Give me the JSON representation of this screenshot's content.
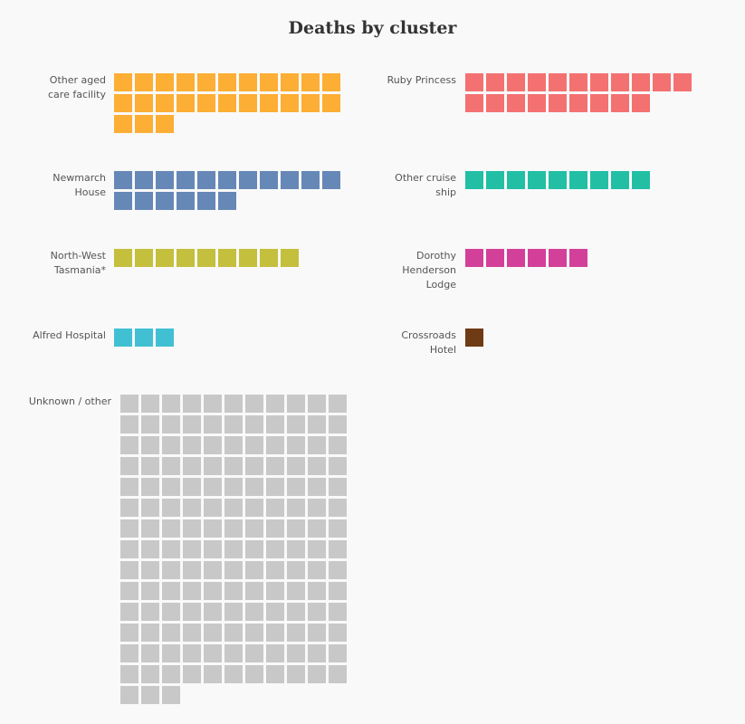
{
  "chart_data": {
    "type": "waffle",
    "title": "Deaths by cluster",
    "unit": "1 square = 1 death",
    "clusters": [
      {
        "name": "Other aged\ncare facility",
        "value": 25,
        "color": "#fdae35"
      },
      {
        "name": "Ruby Princess",
        "value": 20,
        "color": "#f47171"
      },
      {
        "name": "Newmarch\nHouse",
        "value": 17,
        "color": "#6688b7"
      },
      {
        "name": "Other cruise\nship",
        "value": 9,
        "color": "#22bfa5"
      },
      {
        "name": "North-West\nTasmania*",
        "value": 9,
        "color": "#c4bf3c"
      },
      {
        "name": "Dorothy\nHenderson\nLodge",
        "value": 6,
        "color": "#d2409a"
      },
      {
        "name": "Alfred Hospital",
        "value": 3,
        "color": "#41c0d3"
      },
      {
        "name": "Crossroads\nHotel",
        "value": 1,
        "color": "#6e3b14"
      },
      {
        "name": "Unknown / other",
        "value": 157,
        "color": "#c8c8c8"
      }
    ]
  }
}
